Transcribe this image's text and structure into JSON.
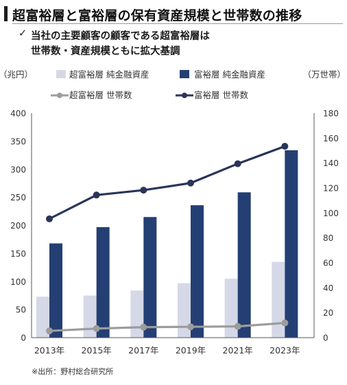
{
  "title": "超富裕層と富裕層の保有資産規模と世帯数の推移",
  "subtitle": {
    "check": "✓",
    "line1": "当社の主要顧客の顧客である超富裕層は",
    "line2": "世帯数・資産規模ともに拡大基調"
  },
  "source": "※出所：野村総合研究所",
  "colors": {
    "ultra_assets": "#d5d8e6",
    "wealthy_assets": "#243f73",
    "ultra_households": "#9c9c9c",
    "wealthy_households": "#2a3558"
  },
  "chart_data": {
    "type": "bar",
    "categories": [
      "2013年",
      "2015年",
      "2017年",
      "2019年",
      "2021年",
      "2023年"
    ],
    "ylabel": "（兆円）",
    "y2label": "（万世帯）",
    "ylim": [
      0,
      400
    ],
    "y2lim": [
      0,
      180
    ],
    "yticks": [
      0,
      50,
      100,
      150,
      200,
      250,
      300,
      350,
      400
    ],
    "y2ticks": [
      0,
      20,
      40,
      60,
      80,
      100,
      120,
      140,
      160,
      180
    ],
    "grid": false,
    "legend_placement": "top",
    "series": [
      {
        "name": "超富裕層 純金融資産",
        "type": "bar",
        "axis": "left",
        "values": [
          73,
          75,
          84,
          97,
          105,
          135
        ]
      },
      {
        "name": "富裕層 純金融資産",
        "type": "bar",
        "axis": "left",
        "values": [
          168,
          197,
          215,
          236,
          259,
          334
        ]
      },
      {
        "name": "超富裕層 世帯数",
        "type": "line",
        "axis": "right",
        "values": [
          5.4,
          7.3,
          8.4,
          8.7,
          9.0,
          11.8
        ]
      },
      {
        "name": "富裕層 世帯数",
        "type": "line",
        "axis": "right",
        "values": [
          95.3,
          114.4,
          118.3,
          124.0,
          139.5,
          153.5
        ]
      }
    ]
  }
}
